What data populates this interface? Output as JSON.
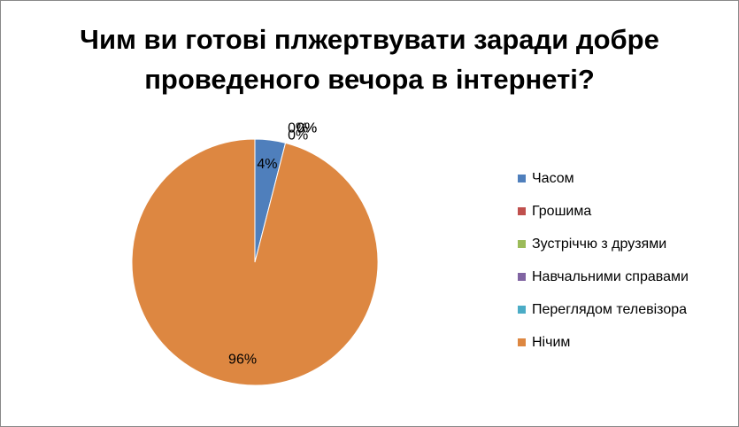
{
  "chart_data": {
    "type": "pie",
    "title": "Чим ви готові плжертвувати заради добре проведеного вечора в інтернеті?",
    "categories": [
      "Часом",
      "Грошима",
      "Зустріччю з друзями",
      "Навчальними справами",
      "Переглядом телевізора",
      "Нічим"
    ],
    "values": [
      4,
      0,
      0,
      0,
      0,
      96
    ],
    "value_labels": [
      "4%",
      "0%",
      "0%",
      "0%",
      "0%",
      "96%"
    ],
    "colors": [
      "#4f7fbc",
      "#c0504d",
      "#9bbb59",
      "#8064a2",
      "#4bacc6",
      "#dd8741"
    ],
    "legend": "right"
  }
}
